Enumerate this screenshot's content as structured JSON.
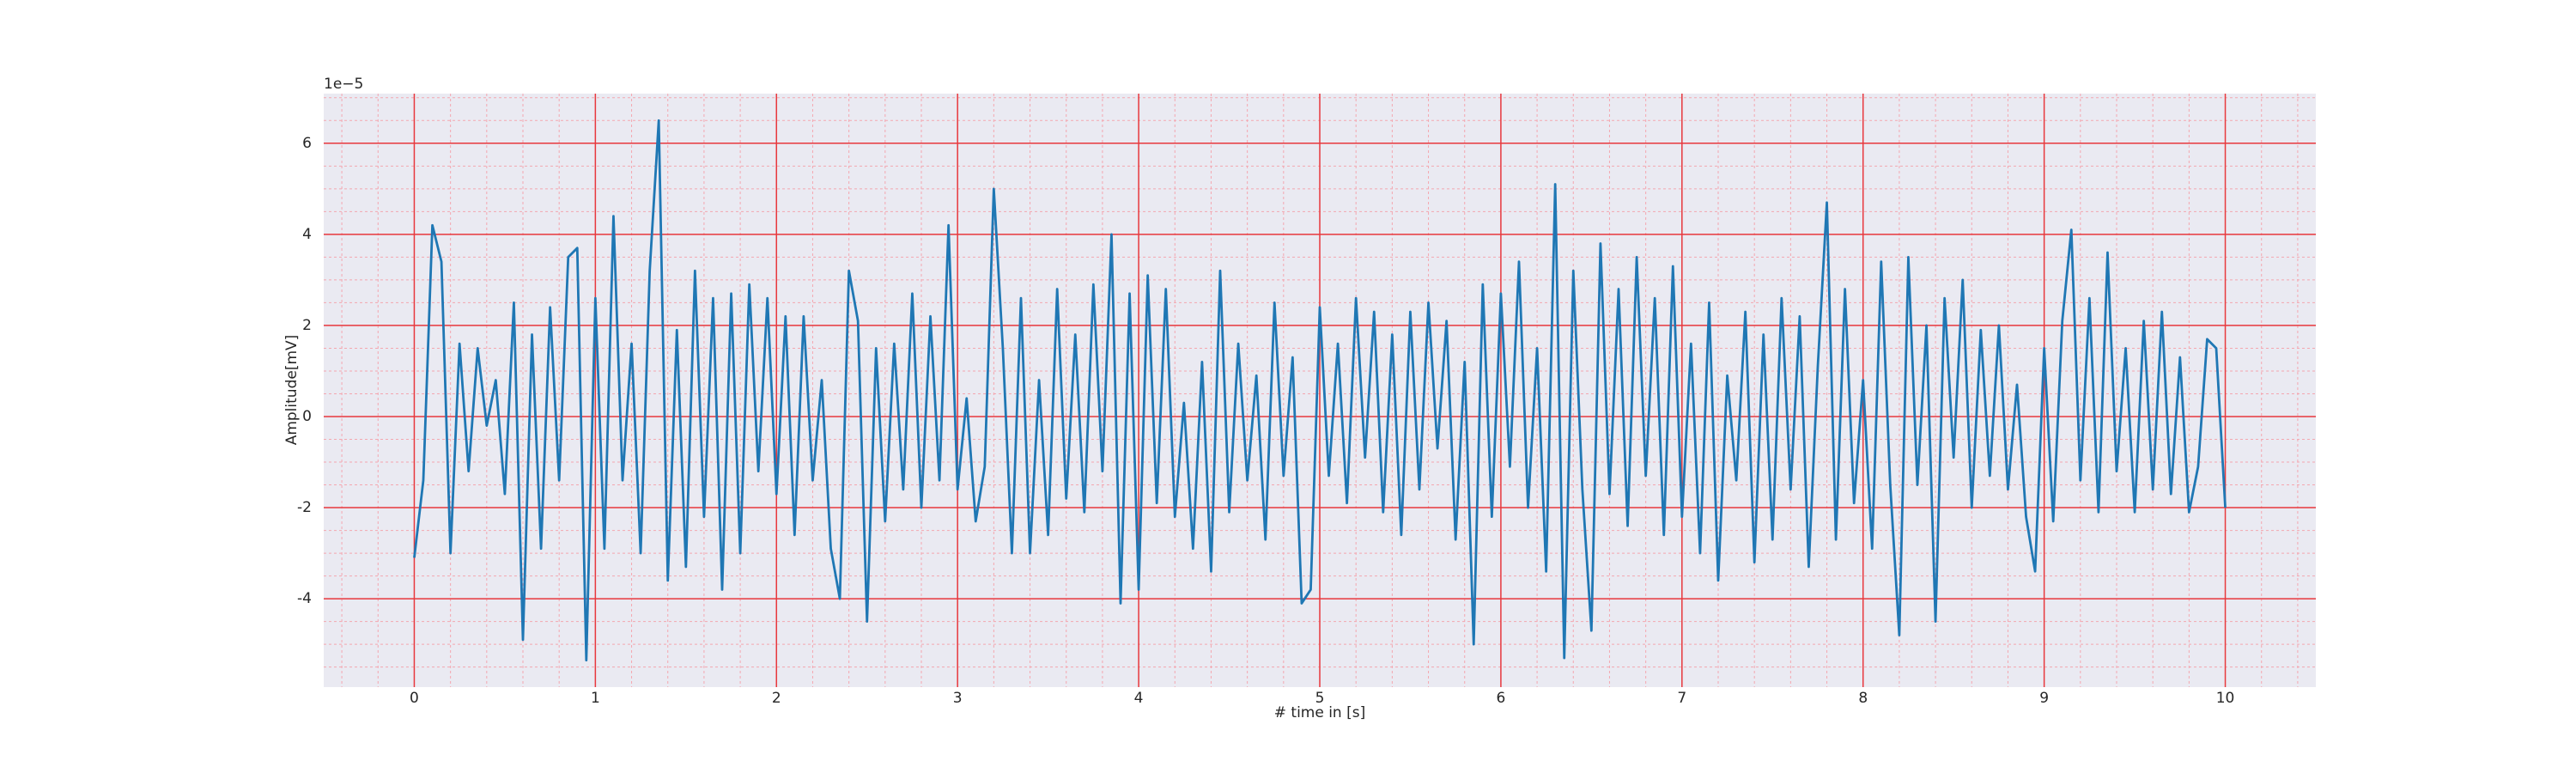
{
  "chart_data": {
    "type": "line",
    "x_label": "# time in [s]",
    "y_label": "Amplitude[mV]",
    "y_offset_text": "1e−5",
    "x": [
      0,
      0.05,
      0.1,
      0.15,
      0.2,
      0.25,
      0.3,
      0.35,
      0.4,
      0.45,
      0.5,
      0.55,
      0.6,
      0.65,
      0.7,
      0.75,
      0.8,
      0.85,
      0.9,
      0.95,
      1,
      1.05,
      1.1,
      1.15,
      1.2,
      1.25,
      1.3,
      1.35,
      1.4,
      1.45,
      1.5,
      1.55,
      1.6,
      1.65,
      1.7,
      1.75,
      1.8,
      1.85,
      1.9,
      1.95,
      2,
      2.05,
      2.1,
      2.15,
      2.2,
      2.25,
      2.3,
      2.35,
      2.4,
      2.45,
      2.5,
      2.55,
      2.6,
      2.65,
      2.7,
      2.75,
      2.8,
      2.85,
      2.9,
      2.95,
      3,
      3.05,
      3.1,
      3.15,
      3.2,
      3.25,
      3.3,
      3.35,
      3.4,
      3.45,
      3.5,
      3.55,
      3.6,
      3.65,
      3.7,
      3.75,
      3.8,
      3.85,
      3.9,
      3.95,
      4,
      4.05,
      4.1,
      4.15,
      4.2,
      4.25,
      4.3,
      4.35,
      4.4,
      4.45,
      4.5,
      4.55,
      4.6,
      4.65,
      4.7,
      4.75,
      4.8,
      4.85,
      4.9,
      4.95,
      5,
      5.05,
      5.1,
      5.15,
      5.2,
      5.25,
      5.3,
      5.35,
      5.4,
      5.45,
      5.5,
      5.55,
      5.6,
      5.65,
      5.7,
      5.75,
      5.8,
      5.85,
      5.9,
      5.95,
      6,
      6.05,
      6.1,
      6.15,
      6.2,
      6.25,
      6.3,
      6.35,
      6.4,
      6.45,
      6.5,
      6.55,
      6.6,
      6.65,
      6.7,
      6.75,
      6.8,
      6.85,
      6.9,
      6.95,
      7,
      7.05,
      7.1,
      7.15,
      7.2,
      7.25,
      7.3,
      7.35,
      7.4,
      7.45,
      7.5,
      7.55,
      7.6,
      7.65,
      7.7,
      7.75,
      7.8,
      7.85,
      7.9,
      7.95,
      8,
      8.05,
      8.1,
      8.15,
      8.2,
      8.25,
      8.3,
      8.35,
      8.4,
      8.45,
      8.5,
      8.55,
      8.6,
      8.65,
      8.7,
      8.75,
      8.8,
      8.85,
      8.9,
      8.95,
      9,
      9.05,
      9.1,
      9.15,
      9.2,
      9.25,
      9.3,
      9.35,
      9.4,
      9.45,
      9.5,
      9.55,
      9.6,
      9.65,
      9.7,
      9.75,
      9.8,
      9.85,
      9.9,
      9.95,
      10
    ],
    "values": [
      -3.1,
      -1.4,
      4.2,
      3.4,
      -3.0,
      1.6,
      -1.2,
      1.5,
      -0.2,
      0.8,
      -1.7,
      2.5,
      -4.9,
      1.8,
      -2.9,
      2.4,
      -1.4,
      3.5,
      3.7,
      -5.35,
      2.6,
      -2.9,
      4.4,
      -1.4,
      1.6,
      -3.0,
      3.2,
      6.5,
      -3.6,
      1.9,
      -3.3,
      3.2,
      -2.2,
      2.6,
      -3.8,
      2.7,
      -3.0,
      2.9,
      -1.2,
      2.6,
      -1.7,
      2.2,
      -2.6,
      2.2,
      -1.4,
      0.8,
      -2.9,
      -4.0,
      3.2,
      2.1,
      -4.5,
      1.5,
      -2.3,
      1.6,
      -1.6,
      2.7,
      -2.0,
      2.2,
      -1.4,
      4.2,
      -1.6,
      0.4,
      -2.3,
      -1.1,
      5.0,
      1.5,
      -3.0,
      2.6,
      -3.0,
      0.8,
      -2.6,
      2.8,
      -1.8,
      1.8,
      -2.1,
      2.9,
      -1.2,
      4.0,
      -4.1,
      2.7,
      -3.8,
      3.1,
      -1.9,
      2.8,
      -2.2,
      0.3,
      -2.9,
      1.2,
      -3.4,
      3.2,
      -2.1,
      1.6,
      -1.4,
      0.9,
      -2.7,
      2.5,
      -1.3,
      1.3,
      -4.1,
      -3.8,
      2.4,
      -1.3,
      1.6,
      -1.9,
      2.6,
      -0.9,
      2.3,
      -2.1,
      1.8,
      -2.6,
      2.3,
      -1.6,
      2.5,
      -0.7,
      2.1,
      -2.7,
      1.2,
      -5.0,
      2.9,
      -2.2,
      2.7,
      -1.1,
      3.4,
      -2.0,
      1.5,
      -3.4,
      5.1,
      -5.3,
      3.2,
      -1.6,
      -4.7,
      3.8,
      -1.7,
      2.8,
      -2.4,
      3.5,
      -1.3,
      2.6,
      -2.6,
      3.3,
      -2.2,
      1.6,
      -3.0,
      2.5,
      -3.6,
      0.9,
      -1.4,
      2.3,
      -3.2,
      1.8,
      -2.7,
      2.6,
      -1.6,
      2.2,
      -3.3,
      1.1,
      4.7,
      -2.7,
      2.8,
      -1.9,
      0.8,
      -2.9,
      3.4,
      -1.5,
      -4.8,
      3.5,
      -1.5,
      2.0,
      -4.5,
      2.6,
      -0.9,
      3.0,
      -2.0,
      1.9,
      -1.3,
      2.0,
      -1.6,
      0.7,
      -2.2,
      -3.4,
      1.5,
      -2.3,
      2.1,
      4.1,
      -1.4,
      2.6,
      -2.1,
      3.6,
      -1.2,
      1.5,
      -2.1,
      2.1,
      -1.6,
      2.3,
      -1.7,
      1.3,
      -2.1,
      -1.1,
      1.7,
      1.5,
      -2.0
    ],
    "color": "#1f77b4",
    "xlim": [
      -0.5,
      10.5
    ],
    "ylim": [
      -5.94,
      7.09
    ],
    "xticks": [
      0,
      1,
      2,
      3,
      4,
      5,
      6,
      7,
      8,
      9,
      10
    ],
    "yticks": [
      -4,
      -2,
      0,
      2,
      4,
      6
    ],
    "xminorticks": [
      -0.4,
      -0.2,
      0.2,
      0.4,
      0.6,
      0.8,
      1.2,
      1.4,
      1.6,
      1.8,
      2.2,
      2.4,
      2.6,
      2.8,
      3.2,
      3.4,
      3.6,
      3.8,
      4.2,
      4.4,
      4.6,
      4.8,
      5.2,
      5.4,
      5.6,
      5.8,
      6.2,
      6.4,
      6.6,
      6.8,
      7.2,
      7.4,
      7.6,
      7.8,
      8.2,
      8.4,
      8.6,
      8.8,
      9.2,
      9.4,
      9.6,
      9.8,
      10.2,
      10.4
    ],
    "yminorticks": [
      -5.5,
      -5,
      -4.5,
      -3.5,
      -3,
      -2.5,
      -1.5,
      -1,
      -0.5,
      0.5,
      1,
      1.5,
      2.5,
      3,
      3.5,
      4.5,
      5,
      5.5,
      6.5,
      7
    ],
    "grid": true,
    "minor_grid": true,
    "grid_color": "#e8383d",
    "minor_grid_color": "#f4a7b0",
    "axes_background": "#eaeaf2"
  }
}
